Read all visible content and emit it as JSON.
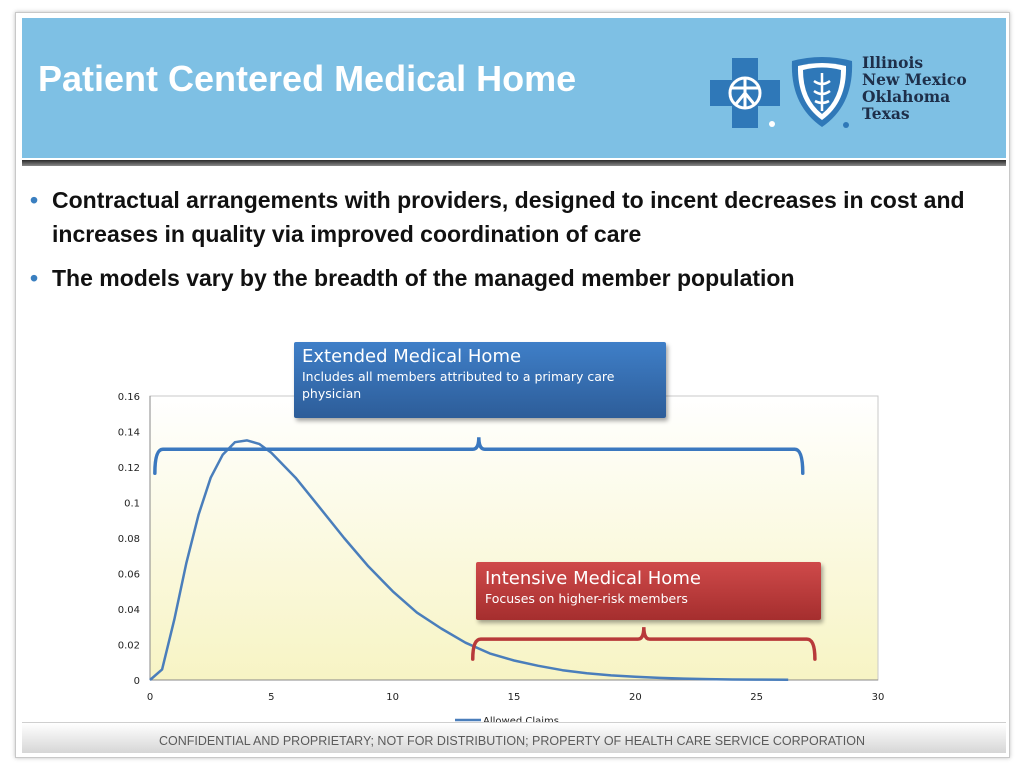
{
  "slide": {
    "title": "Patient Centered Medical Home",
    "logo_states": [
      "Illinois",
      "New Mexico",
      "Oklahoma",
      "Texas"
    ],
    "bullets": [
      "Contractual arrangements with providers, designed to incent decreases in cost and increases in quality via improved coordination of care",
      "The models vary by the breadth of the managed member population"
    ],
    "footer": "CONFIDENTIAL AND PROPRIETARY; NOT FOR DISTRIBUTION; PROPERTY OF HEALTH CARE SERVICE CORPORATION"
  },
  "callouts": {
    "extended": {
      "title": "Extended Medical Home",
      "subtitle": "Includes all members attributed to a primary care physician"
    },
    "intensive": {
      "title": "Intensive Medical Home",
      "subtitle": "Focuses on higher-risk members"
    }
  },
  "colors": {
    "header": "#7ec0e4",
    "series": "#4a7ebb",
    "extended": "#3b78bf",
    "intensive": "#b83a3a",
    "plot_bg_top": "#ffffff",
    "plot_bg_bottom": "#f7f4c4"
  },
  "chart_data": {
    "type": "line",
    "title": "",
    "xlabel": "",
    "ylabel": "",
    "xlim": [
      0,
      30
    ],
    "ylim": [
      0,
      0.16
    ],
    "x_ticks": [
      "0",
      "5",
      "10",
      "15",
      "20",
      "25",
      "30"
    ],
    "y_ticks": [
      "0",
      "0.02",
      "0.04",
      "0.06",
      "0.08",
      "0.1",
      "0.12",
      "0.14",
      "0.16"
    ],
    "grid": false,
    "legend": "bottom",
    "series": [
      {
        "name": "Allowed Claims",
        "x": [
          0,
          0.5,
          1,
          1.5,
          2,
          2.5,
          3,
          3.5,
          4,
          4.5,
          5,
          6,
          7,
          8,
          9,
          10,
          11,
          12,
          13,
          14,
          15,
          16,
          17,
          18,
          19,
          20,
          21,
          22,
          23,
          24,
          25,
          26.3
        ],
        "y": [
          0,
          0.006,
          0.034,
          0.066,
          0.093,
          0.114,
          0.127,
          0.134,
          0.135,
          0.133,
          0.128,
          0.114,
          0.097,
          0.08,
          0.064,
          0.05,
          0.038,
          0.029,
          0.021,
          0.015,
          0.011,
          0.008,
          0.0055,
          0.0038,
          0.0026,
          0.0018,
          0.0012,
          0.0008,
          0.0005,
          0.0003,
          0.0002,
          0.0001
        ]
      }
    ],
    "brackets": [
      {
        "name": "Extended Medical Home",
        "x_range": [
          0.2,
          26.9
        ],
        "y": 0.13
      },
      {
        "name": "Intensive Medical Home",
        "x_range": [
          13.3,
          27.4
        ],
        "y": 0.023
      }
    ]
  }
}
